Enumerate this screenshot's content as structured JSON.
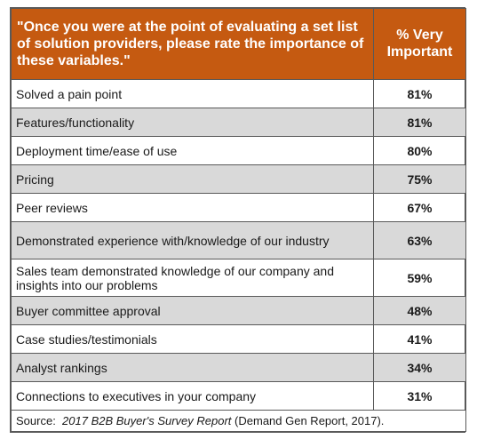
{
  "header": {
    "question": "\"Once you were at the point of evaluating a set list of solution providers, please rate the importance of these variables.\"",
    "percent_column": "% Very Important"
  },
  "rows": [
    {
      "label": "Solved a pain point",
      "value": "81%"
    },
    {
      "label": "Features/functionality",
      "value": "81%"
    },
    {
      "label": "Deployment time/ease of use",
      "value": "80%"
    },
    {
      "label": "Pricing",
      "value": "75%"
    },
    {
      "label": "Peer reviews",
      "value": "67%"
    },
    {
      "label": "Demonstrated experience with/knowledge of our industry",
      "value": "63%"
    },
    {
      "label": "Sales team demonstrated knowledge of our company and insights into our problems",
      "value": "59%"
    },
    {
      "label": "Buyer committee approval",
      "value": "48%"
    },
    {
      "label": "Case studies/testimonials",
      "value": "41%"
    },
    {
      "label": "Analyst rankings",
      "value": "34%"
    },
    {
      "label": "Connections to executives in your company",
      "value": "31%"
    }
  ],
  "source": {
    "prefix": "Source:",
    "title": "2017 B2B Buyer's Survey Report",
    "suffix": "(Demand Gen Report, 2017)."
  },
  "colors": {
    "header_background": "#c55a11",
    "header_text": "#ffffff",
    "shaded_row": "#d9d9d9",
    "border": "#595959"
  },
  "chart_data": {
    "type": "table",
    "title": "\"Once you were at the point of evaluating a set list of solution providers, please rate the importance of these variables.\"",
    "columns": [
      "\"Once you were at the point of evaluating a set list of solution providers, please rate the importance of these variables.\"",
      "% Very Important"
    ],
    "categories": [
      "Solved a pain point",
      "Features/functionality",
      "Deployment time/ease of use",
      "Pricing",
      "Peer reviews",
      "Demonstrated experience with/knowledge of our industry",
      "Sales team demonstrated knowledge of our company and insights into our problems",
      "Buyer committee approval",
      "Case studies/testimonials",
      "Analyst rankings",
      "Connections to executives in your company"
    ],
    "values": [
      81,
      81,
      80,
      75,
      67,
      63,
      59,
      48,
      41,
      34,
      31
    ],
    "unit": "%"
  }
}
